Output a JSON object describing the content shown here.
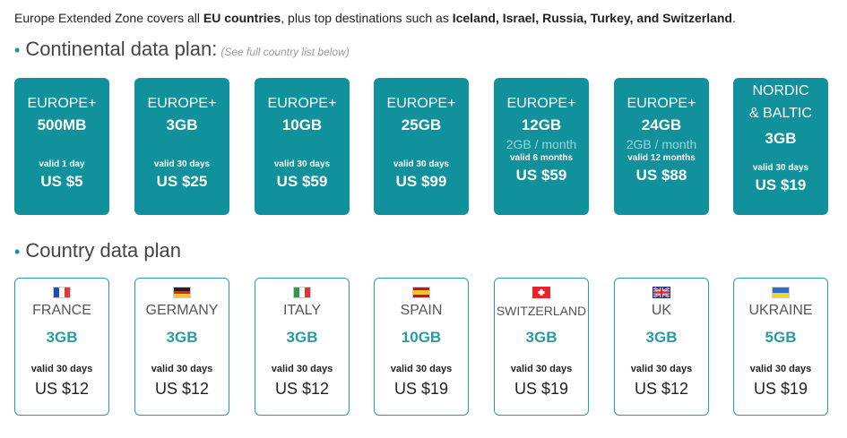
{
  "intro": {
    "prefix": "Europe Extended Zone covers all ",
    "eu": "EU countries",
    "middle": ", plus top destinations such as ",
    "destinations": "Iceland, Israel, Russia, Turkey, and Switzerland",
    "suffix": "."
  },
  "continental": {
    "title": "Continental data plan:",
    "note": "(See full country list below)",
    "plans": [
      {
        "name": "EUROPE+",
        "size": "500MB",
        "monthly": "",
        "valid": "valid 1 day",
        "price": "US $5"
      },
      {
        "name": "EUROPE+",
        "size": "3GB",
        "monthly": "",
        "valid": "valid 30 days",
        "price": "US $25"
      },
      {
        "name": "EUROPE+",
        "size": "10GB",
        "monthly": "",
        "valid": "valid 30 days",
        "price": "US $59"
      },
      {
        "name": "EUROPE+",
        "size": "25GB",
        "monthly": "",
        "valid": "valid 30 days",
        "price": "US $99"
      },
      {
        "name": "EUROPE+",
        "size": "12GB",
        "monthly": "2GB / month",
        "valid": "valid 6 months",
        "price": "US $59"
      },
      {
        "name": "EUROPE+",
        "size": "24GB",
        "monthly": "2GB / month",
        "valid": "valid 12 months",
        "price": "US $88"
      },
      {
        "name": "NORDIC",
        "name2": "& BALTIC",
        "size": "3GB",
        "monthly": "",
        "valid": "valid 30 days",
        "price": "US $19"
      }
    ]
  },
  "country": {
    "title": "Country data plan",
    "plans": [
      {
        "name": "FRANCE",
        "flag": "france-flag-icon",
        "size": "3GB",
        "valid": "valid 30 days",
        "price": "US $12"
      },
      {
        "name": "GERMANY",
        "flag": "germany-flag-icon",
        "size": "3GB",
        "valid": "valid 30 days",
        "price": "US $12"
      },
      {
        "name": "ITALY",
        "flag": "italy-flag-icon",
        "size": "3GB",
        "valid": "valid 30 days",
        "price": "US $12"
      },
      {
        "name": "SPAIN",
        "flag": "spain-flag-icon",
        "size": "10GB",
        "valid": "valid 30 days",
        "price": "US $19"
      },
      {
        "name": "SWITZERLAND",
        "flag": "switzerland-flag-icon",
        "size": "3GB",
        "valid": "valid 30 days",
        "price": "US $19"
      },
      {
        "name": "UK",
        "flag": "uk-flag-icon",
        "size": "3GB",
        "valid": "valid 30 days",
        "price": "US $12"
      },
      {
        "name": "UKRAINE",
        "flag": "ukraine-flag-icon",
        "size": "5GB",
        "valid": "valid 30 days",
        "price": "US $19"
      }
    ]
  },
  "colors": {
    "accent": "#11919c",
    "outline": "#2a9aa4",
    "monthly": "#9bd3d7"
  }
}
